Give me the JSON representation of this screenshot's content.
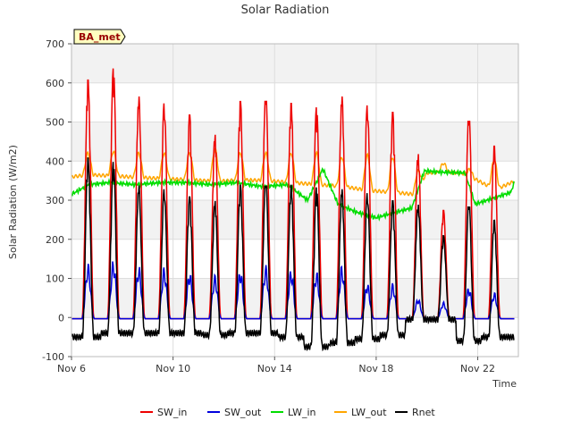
{
  "chart_data": {
    "type": "line",
    "title": "Solar Radiation",
    "xlabel": "Time",
    "ylabel": "Solar Radiation (W/m2)",
    "badge": "BA_met",
    "x_start": "Nov 6",
    "x_range_days": [
      6.0,
      23.6
    ],
    "ylim": [
      -100,
      700
    ],
    "yticks": [
      -100,
      0,
      100,
      200,
      300,
      400,
      500,
      600,
      700
    ],
    "xticks": [
      {
        "label": "Nov 6",
        "day": 6
      },
      {
        "label": "Nov 10",
        "day": 10
      },
      {
        "label": "Nov 14",
        "day": 14
      },
      {
        "label": "Nov 18",
        "day": 18
      },
      {
        "label": "Nov 22",
        "day": 22
      }
    ],
    "grid": true,
    "banded_background": true,
    "legend_position": "bottom",
    "daily_peaks": {
      "days": [
        6.65,
        7.65,
        8.65,
        9.65,
        10.65,
        11.65,
        12.65,
        13.65,
        14.65,
        15.65,
        16.65,
        17.65,
        18.65,
        19.65,
        20.65,
        21.65,
        22.65
      ],
      "SW_in": [
        610,
        640,
        568,
        550,
        520,
        470,
        555,
        578,
        550,
        540,
        568,
        545,
        527,
        420,
        275,
        525,
        440
      ],
      "SW_out": [
        140,
        150,
        135,
        130,
        120,
        110,
        125,
        135,
        125,
        120,
        135,
        90,
        88,
        50,
        40,
        80,
        65
      ],
      "Rnet": [
        410,
        400,
        340,
        330,
        310,
        300,
        340,
        355,
        340,
        335,
        330,
        320,
        300,
        290,
        210,
        300,
        250
      ],
      "night_Rnet": [
        -50,
        -40,
        -40,
        -40,
        -40,
        -45,
        -40,
        -40,
        -50,
        -75,
        -65,
        -55,
        -45,
        -5,
        -5,
        -60,
        -50
      ]
    },
    "series": [
      {
        "name": "SW_in",
        "color": "#ee0000"
      },
      {
        "name": "SW_out",
        "color": "#0000dd"
      },
      {
        "name": "LW_in",
        "color": "#00dd00"
      },
      {
        "name": "LW_out",
        "color": "#ffa500"
      },
      {
        "name": "Rnet",
        "color": "#000000"
      }
    ],
    "LW_out_profile": {
      "days": [
        6.0,
        6.7,
        7.7,
        8.7,
        9.7,
        10.7,
        11.7,
        12.7,
        13.7,
        14.7,
        15.7,
        16.7,
        17.7,
        18.7,
        19.5,
        20.0,
        20.7,
        21.5,
        22.3,
        22.8,
        23.5
      ],
      "night": [
        360,
        365,
        362,
        358,
        355,
        352,
        348,
        352,
        350,
        345,
        340,
        335,
        325,
        320,
        315,
        370,
        372,
        368,
        340,
        330,
        350
      ],
      "day": [
        420,
        420,
        425,
        420,
        420,
        420,
        430,
        420,
        420,
        420,
        420,
        410,
        415,
        410,
        370,
        385,
        395,
        370,
        410,
        400,
        405
      ]
    },
    "LW_in_profile": {
      "days": [
        6.0,
        6.7,
        7.5,
        8.5,
        9.5,
        10.5,
        11.5,
        12.5,
        13.5,
        14.5,
        15.3,
        15.9,
        16.5,
        17.2,
        18.0,
        18.8,
        19.4,
        19.9,
        20.5,
        21.5,
        21.9,
        22.6,
        23.3,
        23.5
      ],
      "values": [
        315,
        340,
        345,
        340,
        345,
        345,
        340,
        345,
        335,
        340,
        300,
        380,
        290,
        270,
        255,
        270,
        280,
        375,
        372,
        370,
        290,
        305,
        320,
        355
      ]
    }
  }
}
